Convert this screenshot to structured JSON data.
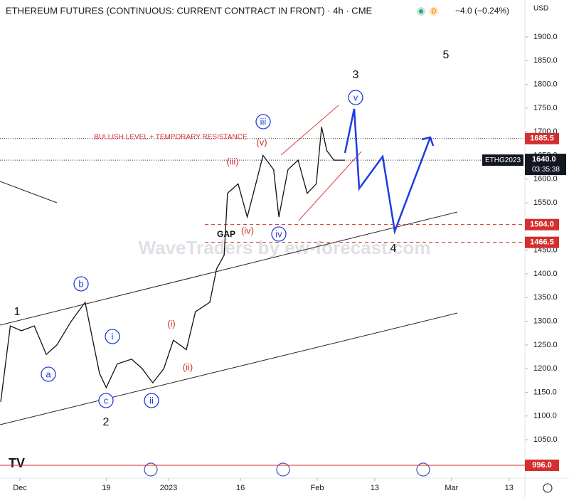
{
  "chart_data": {
    "type": "line",
    "title": "ETHEREUM FUTURES (CONTINUOUS: CURRENT CONTRACT IN FRONT) · 4h · CME",
    "change": "−4.0 (−0.24%)",
    "currency": "USD",
    "watermark": "WaveTraders by ew-forecast.com",
    "color": "#111111",
    "x": [
      -4,
      -2,
      0.3,
      3,
      5.5,
      7.7,
      10.7,
      13.6,
      15,
      16.6,
      18,
      20.3,
      23.3,
      25.5,
      27.7,
      30,
      32,
      34.7,
      36.6,
      39.6,
      41,
      42.6,
      43.3,
      45.5,
      47.4,
      49.2,
      50.7,
      52.9,
      54,
      55.9,
      58,
      59.9,
      61.8,
      62.9,
      64,
      65.5,
      67.8
    ],
    "values": [
      1130,
      1290,
      1280,
      1290,
      1230,
      1250,
      1300,
      1340,
      1270,
      1190,
      1160,
      1210,
      1220,
      1200,
      1170,
      1200,
      1260,
      1240,
      1320,
      1340,
      1410,
      1440,
      1570,
      1590,
      1520,
      1590,
      1650,
      1620,
      1520,
      1620,
      1640,
      1570,
      1590,
      1710,
      1660,
      1640,
      1640
    ],
    "xlim": [
      -4.15,
      105.3
    ],
    "xticks": [
      {
        "value": 0,
        "label": "Dec"
      },
      {
        "value": 18,
        "label": "19"
      },
      {
        "value": 31,
        "label": "2023"
      },
      {
        "value": 46,
        "label": "16"
      },
      {
        "value": 62,
        "label": "Feb"
      },
      {
        "value": 74,
        "label": "13"
      },
      {
        "value": 90,
        "label": "Mar"
      },
      {
        "value": 102,
        "label": "13"
      }
    ],
    "ylim": [
      969,
      1978
    ],
    "yticks": [
      {
        "value": 1050,
        "label": "1050.0"
      },
      {
        "value": 1100,
        "label": "1100.0"
      },
      {
        "value": 1150,
        "label": "1150.0"
      },
      {
        "value": 1200,
        "label": "1200.0"
      },
      {
        "value": 1250,
        "label": "1250.0"
      },
      {
        "value": 1300,
        "label": "1300.0"
      },
      {
        "value": 1350,
        "label": "1350.0"
      },
      {
        "value": 1400,
        "label": "1400.0"
      },
      {
        "value": 1450,
        "label": "1450.0"
      },
      {
        "value": 1500,
        "label": "1500.0"
      },
      {
        "value": 1550,
        "label": "1550.0"
      },
      {
        "value": 1600,
        "label": "1600.0"
      },
      {
        "value": 1650,
        "label": "1650.0"
      },
      {
        "value": 1700,
        "label": "1700.0"
      },
      {
        "value": 1750,
        "label": "1750.0"
      },
      {
        "value": 1800,
        "label": "1800.0"
      },
      {
        "value": 1850,
        "label": "1850.0"
      },
      {
        "value": 1900,
        "label": "1900.0"
      }
    ],
    "levels": [
      {
        "value": 1685.5,
        "label": "1685.5",
        "color": "#d32f2f",
        "line_style": "dotted",
        "note": "BULLISH LEVEL + TEMPORARY RESISTANCE"
      },
      {
        "value": 1504,
        "label": "1504.0",
        "color": "#d32f2f",
        "line_style": "dashed"
      },
      {
        "value": 1466.5,
        "label": "1466.5",
        "color": "#d32f2f",
        "line_style": "dashed"
      },
      {
        "value": 996,
        "label": "996.0",
        "color": "#d32f2f",
        "line_style": "solid"
      }
    ],
    "last_price": {
      "value": 1640,
      "label": "1640.0"
    },
    "symbol": "ETHG2023",
    "countdown": "03:35:38",
    "wave_labels": [
      "1",
      "a",
      "b",
      "i",
      "c",
      "2",
      "ii",
      "(i)",
      "(ii)",
      "(iii)",
      "(iv)",
      "(v)",
      "iii",
      "iv",
      "GAP",
      "v",
      "3",
      "4",
      "5"
    ]
  }
}
